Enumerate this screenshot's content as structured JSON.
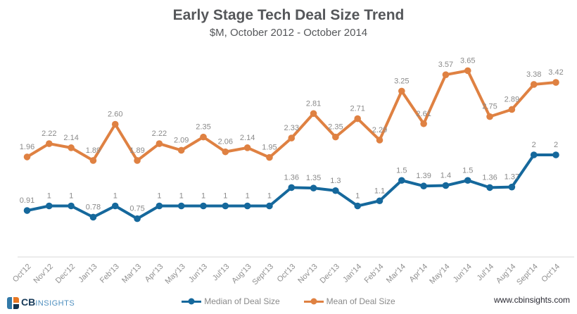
{
  "header": {
    "title": "Early Stage Tech Deal Size Trend",
    "subtitle": "$M, October 2012 - October 2014"
  },
  "chart_data": {
    "type": "line",
    "title": "Early Stage Tech Deal Size Trend",
    "subtitle": "$M, October 2012 - October 2014",
    "xlabel": "",
    "ylabel": "",
    "ylim": [
      0,
      4
    ],
    "grid": false,
    "legend_position": "bottom",
    "categories": [
      "Oct'12",
      "Nov'12",
      "Dec'12",
      "Jan'13",
      "Feb'13",
      "Mar'13",
      "Apr'13",
      "May'13",
      "Jun'13",
      "Jul'13",
      "Aug'13",
      "Sept'13",
      "Oct'13",
      "Nov'13",
      "Dec'13",
      "Jan'14",
      "Feb'14",
      "Mar'14",
      "Apr'14",
      "May'14",
      "Jun'14",
      "Jul'14",
      "Aug'14",
      "Sept'14",
      "Oct'14"
    ],
    "series": [
      {
        "name": "Mean of Deal Size",
        "color": "#df8142",
        "values": [
          1.96,
          2.22,
          2.14,
          1.89,
          2.6,
          1.89,
          2.22,
          2.09,
          2.35,
          2.06,
          2.14,
          1.95,
          2.33,
          2.81,
          2.35,
          2.71,
          2.29,
          3.25,
          2.61,
          3.57,
          3.65,
          2.75,
          2.89,
          3.38,
          3.42
        ],
        "labels": [
          "1.96",
          "2.22",
          "2.14",
          "1.89",
          "2.60",
          "1.89",
          "2.22",
          "2.09",
          "2.35",
          "2.06",
          "2.14",
          "1.95",
          "2.33",
          "2.81",
          "2.35",
          "2.71",
          "2.29",
          "3.25",
          "2.61",
          "3.57",
          "3.65",
          "2.75",
          "2.89",
          "3.38",
          "3.42"
        ]
      },
      {
        "name": "Median of Deal Size",
        "color": "#15689c",
        "values": [
          0.91,
          1,
          1,
          0.78,
          1,
          0.75,
          1,
          1,
          1,
          1,
          1,
          1,
          1.36,
          1.35,
          1.3,
          1,
          1.1,
          1.5,
          1.39,
          1.4,
          1.5,
          1.36,
          1.37,
          2,
          2
        ],
        "labels": [
          "0.91",
          "1",
          "1",
          "0.78",
          "1",
          "0.75",
          "1",
          "1",
          "1",
          "1",
          "1",
          "1",
          "1.36",
          "1.35",
          "1.3",
          "1",
          "1.1",
          "1.5",
          "1.39",
          "1.4",
          "1.5",
          "1.36",
          "1.37",
          "2",
          "2"
        ]
      }
    ],
    "colors": {
      "data_label": "#8a8a8a",
      "tick_label": "#8f8f8f",
      "axis_line": "#d8d8d8"
    }
  },
  "legend": {
    "items": [
      {
        "label": "Median of Deal Size",
        "color": "#15689c"
      },
      {
        "label": "Mean of Deal Size",
        "color": "#df8142"
      }
    ]
  },
  "footer": {
    "brand_cb": "CB",
    "brand_insights": "INSIGHTS",
    "website": "www.cbinsights.com",
    "brand_colors": {
      "cb_text": "#173a59",
      "insights_text": "#4e8fbf",
      "icon_left": "#3279a8",
      "icon_top_right": "#e87722",
      "icon_bottom_right": "#14334e"
    }
  }
}
